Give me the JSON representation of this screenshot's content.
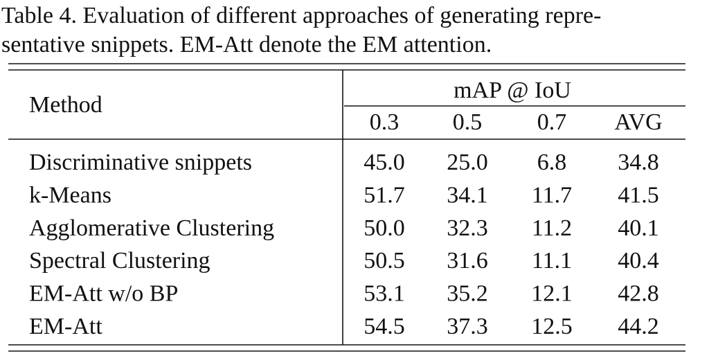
{
  "caption": [
    "Table 4.  Evaluation of different approaches of generating repre-",
    "sentative snippets. EM-Att denote the EM attention."
  ],
  "table": {
    "header": {
      "method": "Method",
      "group": "mAP @ IoU",
      "columns": [
        "0.3",
        "0.5",
        "0.7",
        "AVG"
      ]
    },
    "rows": [
      {
        "method": "Discriminative snippets",
        "values": [
          "45.0",
          "25.0",
          "6.8",
          "34.8"
        ]
      },
      {
        "method": "k-Means",
        "values": [
          "51.7",
          "34.1",
          "11.7",
          "41.5"
        ]
      },
      {
        "method": "Agglomerative Clustering",
        "values": [
          "50.0",
          "32.3",
          "11.2",
          "40.1"
        ]
      },
      {
        "method": "Spectral Clustering",
        "values": [
          "50.5",
          "31.6",
          "11.1",
          "40.4"
        ]
      },
      {
        "method": "EM-Att w/o BP",
        "values": [
          "53.1",
          "35.2",
          "12.1",
          "42.8"
        ]
      },
      {
        "method": "EM-Att",
        "values": [
          "54.5",
          "37.3",
          "12.5",
          "44.2"
        ]
      }
    ]
  }
}
